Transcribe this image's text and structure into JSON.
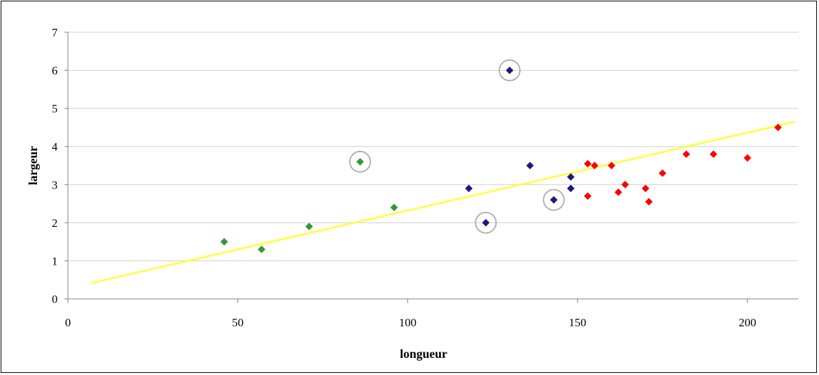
{
  "chart_data": {
    "type": "scatter",
    "title": "",
    "xlabel": "longueur",
    "ylabel": "largeur",
    "xlim": [
      0,
      215
    ],
    "ylim": [
      0,
      7
    ],
    "x_ticks": [
      "0",
      "50",
      "100",
      "150",
      "200"
    ],
    "y_ticks": [
      "0",
      "1",
      "2",
      "3",
      "4",
      "5",
      "6",
      "7"
    ],
    "grid": "horizontal",
    "legend": "none",
    "series": [
      {
        "color": "#339933",
        "points": [
          {
            "x": 46,
            "y": 1.5
          },
          {
            "x": 57,
            "y": 1.3
          },
          {
            "x": 71,
            "y": 1.9
          },
          {
            "x": 86,
            "y": 3.6,
            "circled": true
          },
          {
            "x": 96,
            "y": 2.4
          }
        ]
      },
      {
        "color": "#1a1a80",
        "points": [
          {
            "x": 118,
            "y": 2.9
          },
          {
            "x": 123,
            "y": 2.0,
            "circled": true
          },
          {
            "x": 130,
            "y": 6.0,
            "circled": true
          },
          {
            "x": 136,
            "y": 3.5
          },
          {
            "x": 143,
            "y": 2.6,
            "circled": true
          },
          {
            "x": 148,
            "y": 3.2
          },
          {
            "x": 148,
            "y": 2.9
          }
        ]
      },
      {
        "color": "#ff0000",
        "points": [
          {
            "x": 153,
            "y": 3.55
          },
          {
            "x": 155,
            "y": 3.5
          },
          {
            "x": 153,
            "y": 2.7
          },
          {
            "x": 160,
            "y": 3.5
          },
          {
            "x": 162,
            "y": 2.8
          },
          {
            "x": 164,
            "y": 3.0
          },
          {
            "x": 170,
            "y": 2.9
          },
          {
            "x": 171,
            "y": 2.55
          },
          {
            "x": 175,
            "y": 3.3
          },
          {
            "x": 182,
            "y": 3.8
          },
          {
            "x": 190,
            "y": 3.8
          },
          {
            "x": 200,
            "y": 3.7
          },
          {
            "x": 209,
            "y": 4.5
          }
        ]
      }
    ],
    "trendline": {
      "color": "#ffff33",
      "x_start": 7,
      "y_start": 0.42,
      "x_end": 214,
      "y_end": 4.65
    },
    "circle_color": "#aaaaaa"
  }
}
